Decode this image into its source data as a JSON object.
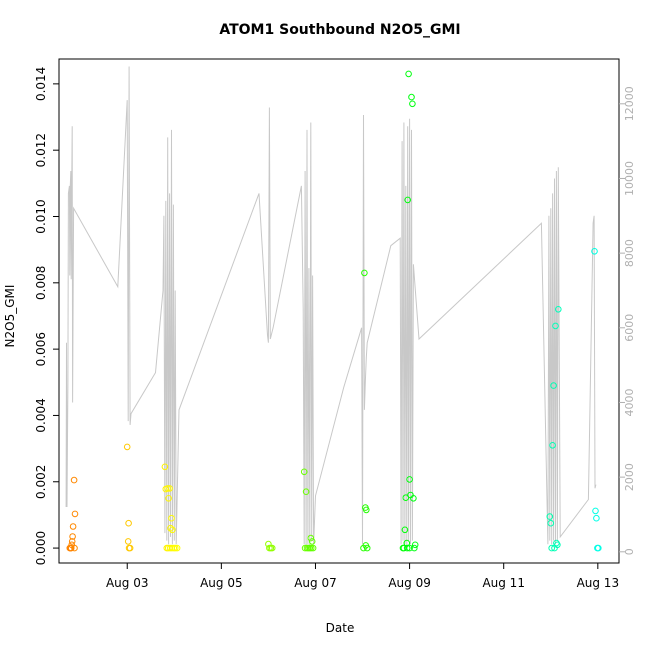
{
  "chart_data": {
    "type": "scatter",
    "title": "ATOM1 Southbound N2O5_GMI",
    "xlabel": "Date",
    "ylabel": "N2O5_GMI",
    "y2label": "",
    "x_ticks": [
      "Aug 03",
      "Aug 05",
      "Aug 07",
      "Aug 09",
      "Aug 11",
      "Aug 13"
    ],
    "y_ticks": [
      "0.000",
      "0.002",
      "0.004",
      "0.006",
      "0.008",
      "0.010",
      "0.012",
      "0.014"
    ],
    "y2_ticks": [
      "0",
      "2000",
      "4000",
      "6000",
      "8000",
      "10000",
      "12000"
    ],
    "xlim": [
      1.55,
      13.45
    ],
    "ylim": [
      -0.00045,
      0.01475
    ],
    "y2lim": [
      -300,
      13200
    ],
    "grid": false,
    "legend": "none",
    "line_color": "#c8c8c8",
    "marker": "open-circle",
    "series": [
      {
        "values_on": "left-axis",
        "color_by": "time",
        "points": [
          [
            1.78,
            0.0
          ],
          [
            1.79,
            0.0
          ],
          [
            1.8,
            0.0
          ],
          [
            1.81,
            0.0
          ],
          [
            1.82,
            0.0001
          ],
          [
            1.83,
            0.0002
          ],
          [
            1.84,
            0.00035
          ],
          [
            1.85,
            0.00065
          ],
          [
            1.87,
            0.00205
          ],
          [
            1.88,
            0.0
          ],
          [
            1.89,
            0.00103
          ],
          [
            3.0,
            0.00305
          ],
          [
            3.03,
            0.00075
          ],
          [
            3.02,
            0.0002
          ],
          [
            3.04,
            0.0
          ],
          [
            3.06,
            0.0
          ],
          [
            3.8,
            0.00245
          ],
          [
            3.82,
            0.00178
          ],
          [
            3.86,
            0.0018
          ],
          [
            3.88,
            0.0015
          ],
          [
            3.9,
            0.0018
          ],
          [
            3.92,
            0.0006
          ],
          [
            3.94,
            0.0009
          ],
          [
            3.96,
            0.00055
          ],
          [
            3.84,
            0.0
          ],
          [
            3.87,
            0.0
          ],
          [
            3.91,
            0.0
          ],
          [
            3.95,
            0.0
          ],
          [
            3.99,
            0.0
          ],
          [
            4.02,
            0.0
          ],
          [
            4.06,
            0.0
          ],
          [
            6.0,
            0.00012
          ],
          [
            6.02,
            0.0
          ],
          [
            6.05,
            0.0
          ],
          [
            6.08,
            0.0
          ],
          [
            6.76,
            0.0023
          ],
          [
            6.8,
            0.0017
          ],
          [
            6.78,
            0.0
          ],
          [
            6.82,
            0.0
          ],
          [
            6.85,
            0.0
          ],
          [
            6.88,
            0.0
          ],
          [
            6.91,
            0.0
          ],
          [
            6.95,
            0.0
          ],
          [
            6.93,
            0.0002
          ],
          [
            6.9,
            0.0003
          ],
          [
            8.02,
            0.0
          ],
          [
            8.04,
            0.0083
          ],
          [
            8.06,
            0.00122
          ],
          [
            8.08,
            0.00115
          ],
          [
            8.1,
            0.0
          ],
          [
            8.07,
            8e-05
          ],
          [
            8.86,
            0.0
          ],
          [
            8.88,
            0.0
          ],
          [
            8.9,
            0.00055
          ],
          [
            8.92,
            0.00152
          ],
          [
            8.94,
            0.00015
          ],
          [
            8.96,
            0.0105
          ],
          [
            8.98,
            0.0143
          ],
          [
            9.0,
            0.00207
          ],
          [
            9.02,
            0.0016
          ],
          [
            9.04,
            0.0136
          ],
          [
            9.06,
            0.0134
          ],
          [
            9.08,
            0.0015
          ],
          [
            9.1,
            0.0
          ],
          [
            9.12,
            0.0001
          ],
          [
            8.95,
            0.0
          ],
          [
            9.0,
            0.0
          ],
          [
            11.98,
            0.00095
          ],
          [
            12.0,
            0.00075
          ],
          [
            12.02,
            0.0
          ],
          [
            12.04,
            0.0031
          ],
          [
            12.06,
            0.0049
          ],
          [
            12.08,
            0.0
          ],
          [
            12.1,
            0.0067
          ],
          [
            12.12,
            0.00015
          ],
          [
            12.14,
            0.0001
          ],
          [
            12.16,
            0.0072
          ],
          [
            12.93,
            0.00895
          ],
          [
            12.95,
            0.00112
          ],
          [
            12.97,
            0.0009
          ],
          [
            12.99,
            0.0
          ],
          [
            13.01,
            0.0
          ]
        ]
      },
      {
        "values_on": "right-axis",
        "style": "line",
        "points": [
          [
            1.7,
            1200
          ],
          [
            1.71,
            5600
          ],
          [
            1.72,
            1200
          ],
          [
            1.74,
            4500
          ],
          [
            1.75,
            9600
          ],
          [
            1.77,
            9800
          ],
          [
            1.78,
            7400
          ],
          [
            1.79,
            9800
          ],
          [
            1.8,
            10200
          ],
          [
            1.81,
            7300
          ],
          [
            1.82,
            9700
          ],
          [
            1.83,
            11400
          ],
          [
            1.84,
            4000
          ],
          [
            1.86,
            9200
          ],
          [
            2.8,
            7100
          ],
          [
            3.0,
            12100
          ],
          [
            3.02,
            3500
          ],
          [
            3.04,
            13000
          ],
          [
            3.06,
            3400
          ],
          [
            3.08,
            3700
          ],
          [
            3.6,
            4800
          ],
          [
            3.76,
            7000
          ],
          [
            3.78,
            9000
          ],
          [
            3.8,
            500
          ],
          [
            3.82,
            9400
          ],
          [
            3.84,
            300
          ],
          [
            3.86,
            11100
          ],
          [
            3.88,
            200
          ],
          [
            3.9,
            9600
          ],
          [
            3.92,
            400
          ],
          [
            3.94,
            11300
          ],
          [
            3.96,
            200
          ],
          [
            3.98,
            9300
          ],
          [
            4.0,
            300
          ],
          [
            4.02,
            7000
          ],
          [
            4.04,
            200
          ],
          [
            4.1,
            3800
          ],
          [
            5.8,
            9600
          ],
          [
            5.98,
            5800
          ],
          [
            6.0,
            5600
          ],
          [
            6.02,
            11900
          ],
          [
            6.04,
            5700
          ],
          [
            6.1,
            6000
          ],
          [
            6.7,
            9800
          ],
          [
            6.74,
            6500
          ],
          [
            6.76,
            200
          ],
          [
            6.78,
            10200
          ],
          [
            6.8,
            100
          ],
          [
            6.82,
            11300
          ],
          [
            6.84,
            200
          ],
          [
            6.86,
            7600
          ],
          [
            6.88,
            100
          ],
          [
            6.9,
            11500
          ],
          [
            6.92,
            300
          ],
          [
            6.94,
            7400
          ],
          [
            6.96,
            200
          ],
          [
            7.0,
            1500
          ],
          [
            7.6,
            4400
          ],
          [
            7.98,
            6000
          ],
          [
            8.0,
            200
          ],
          [
            8.02,
            11700
          ],
          [
            8.04,
            3800
          ],
          [
            8.06,
            4600
          ],
          [
            8.08,
            5200
          ],
          [
            8.1,
            5600
          ],
          [
            8.6,
            8200
          ],
          [
            8.8,
            8400
          ],
          [
            8.82,
            200
          ],
          [
            8.84,
            11000
          ],
          [
            8.86,
            300
          ],
          [
            8.88,
            11500
          ],
          [
            8.9,
            200
          ],
          [
            8.92,
            9800
          ],
          [
            8.94,
            100
          ],
          [
            8.96,
            11400
          ],
          [
            8.98,
            300
          ],
          [
            9.0,
            11600
          ],
          [
            9.02,
            200
          ],
          [
            9.04,
            11300
          ],
          [
            9.06,
            300
          ],
          [
            9.08,
            7700
          ],
          [
            9.2,
            5700
          ],
          [
            11.8,
            8800
          ],
          [
            11.94,
            200
          ],
          [
            11.96,
            9000
          ],
          [
            11.98,
            300
          ],
          [
            12.0,
            9200
          ],
          [
            12.02,
            200
          ],
          [
            12.04,
            9600
          ],
          [
            12.06,
            300
          ],
          [
            12.08,
            10000
          ],
          [
            12.1,
            200
          ],
          [
            12.12,
            10200
          ],
          [
            12.14,
            300
          ],
          [
            12.16,
            10300
          ],
          [
            12.2,
            400
          ],
          [
            12.8,
            1400
          ],
          [
            12.9,
            8800
          ],
          [
            12.92,
            9000
          ],
          [
            12.94,
            1700
          ],
          [
            12.96,
            1800
          ]
        ]
      }
    ]
  }
}
